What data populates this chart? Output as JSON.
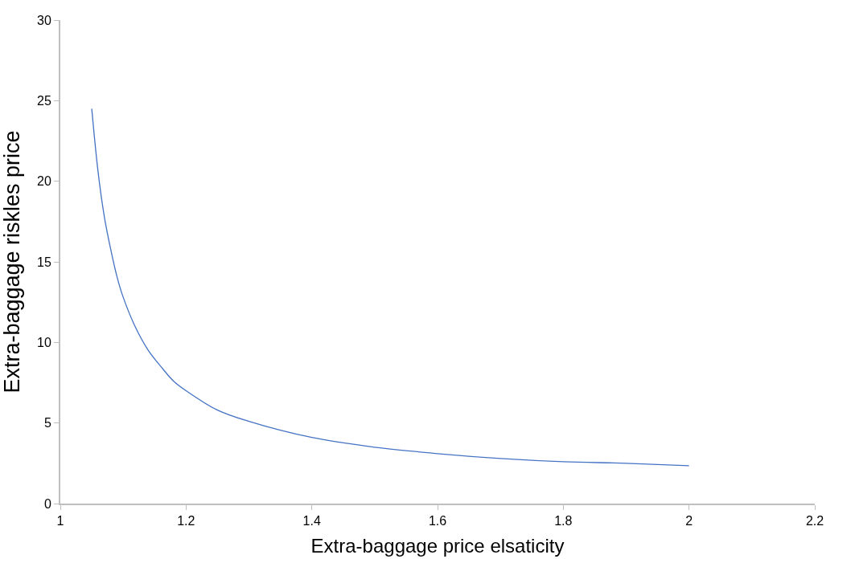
{
  "chart_data": {
    "type": "line",
    "xlabel": "Extra-baggage price elsaticity",
    "ylabel": "Extra-baggage riskles price",
    "x": [
      1.05,
      1.06,
      1.07,
      1.08,
      1.09,
      1.1,
      1.12,
      1.14,
      1.16,
      1.18,
      1.2,
      1.25,
      1.3,
      1.4,
      1.5,
      1.6,
      1.7,
      1.8,
      1.9,
      2.0
    ],
    "series": [
      {
        "color": "#4472c4",
        "values": [
          24.5,
          20.6,
          17.8,
          15.8,
          14.1,
          12.8,
          10.9,
          9.5,
          8.5,
          7.6,
          7.0,
          5.8,
          5.1,
          4.1,
          3.5,
          3.1,
          2.8,
          2.6,
          2.5,
          2.35
        ]
      }
    ],
    "xlim": [
      1,
      2.2
    ],
    "xticks": [
      1,
      1.2,
      1.4,
      1.6,
      1.8,
      2,
      2.2
    ],
    "ylim": [
      0,
      30
    ],
    "yticks": [
      0,
      5,
      10,
      15,
      20,
      25,
      30
    ]
  }
}
